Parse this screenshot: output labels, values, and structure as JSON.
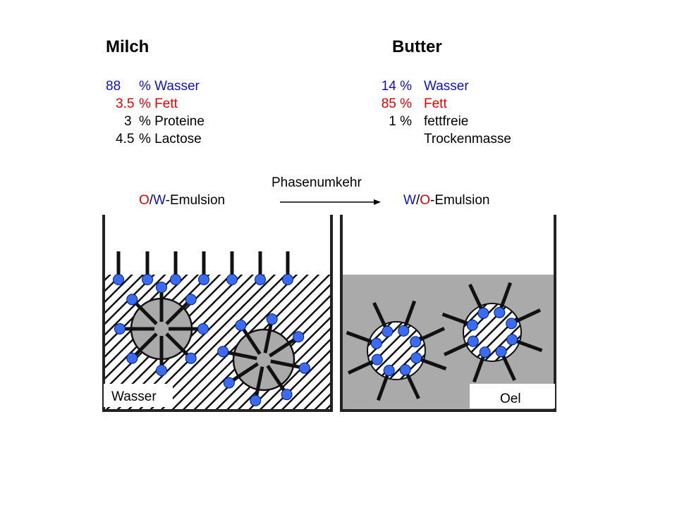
{
  "milk": {
    "title": "Milch",
    "rows": [
      {
        "amount": "88",
        "label": "% Wasser"
      },
      {
        "amount": "3.5",
        "label": "% Fett"
      },
      {
        "amount": "3",
        "label": "% Proteine"
      },
      {
        "amount": "4.5",
        "label": "% Lactose"
      }
    ]
  },
  "butter": {
    "title": "Butter",
    "rows": [
      {
        "amount": "14 %",
        "label": "Wasser"
      },
      {
        "amount": "85 %",
        "label": "Fett"
      },
      {
        "amount": "1 %",
        "label": "fettfreie",
        "label_cont": "Trockenmasse"
      }
    ]
  },
  "process": {
    "label": "Phasenumkehr"
  },
  "left_emulsion": {
    "oil": "O",
    "slash": "/",
    "water": "W",
    "suffix": "-Emulsion"
  },
  "right_emulsion": {
    "water": "W",
    "slash": "/",
    "oil": "O",
    "suffix": "-Emulsion"
  },
  "left_box": {
    "label": "Wasser"
  },
  "right_box": {
    "label": "Oel"
  }
}
